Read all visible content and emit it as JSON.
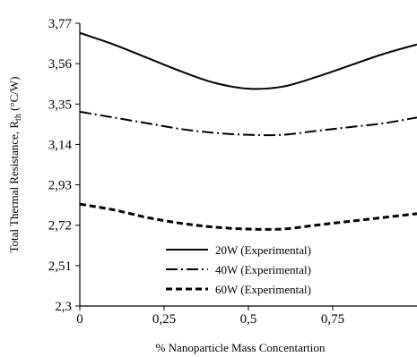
{
  "chart_data": {
    "type": "line",
    "xlabel": "% Nanoparticle Mass Concentartion",
    "ylabel": "Total Thermal Resistance, R",
    "ylabel_subscript": "th",
    "ylabel_unit": " (°C/W)",
    "xlim": [
      0,
      1
    ],
    "ylim": [
      2.3,
      3.77
    ],
    "x_ticks": [
      {
        "value": 0,
        "label": "0"
      },
      {
        "value": 0.25,
        "label": "0,25"
      },
      {
        "value": 0.5,
        "label": "0,5"
      },
      {
        "value": 0.75,
        "label": "0,75"
      }
    ],
    "y_ticks": [
      {
        "value": 2.3,
        "label": "2,3"
      },
      {
        "value": 2.51,
        "label": "2,51"
      },
      {
        "value": 2.72,
        "label": "2,72"
      },
      {
        "value": 2.93,
        "label": "2,93"
      },
      {
        "value": 3.14,
        "label": "3,14"
      },
      {
        "value": 3.35,
        "label": "3,35"
      },
      {
        "value": 3.56,
        "label": "3,56"
      },
      {
        "value": 3.77,
        "label": "3,77"
      }
    ],
    "grid": false,
    "legend_position": "bottom-center",
    "series": [
      {
        "name": "20W (Experimental)",
        "style": "solid",
        "color": "#000000",
        "x": [
          0,
          0.1,
          0.2,
          0.3,
          0.4,
          0.5,
          0.6,
          0.7,
          0.8,
          0.9,
          1.0
        ],
        "y": [
          3.72,
          3.66,
          3.59,
          3.52,
          3.46,
          3.43,
          3.44,
          3.49,
          3.55,
          3.61,
          3.66
        ]
      },
      {
        "name": "40W (Experimental)",
        "style": "dashdot",
        "color": "#000000",
        "x": [
          0,
          0.1,
          0.2,
          0.3,
          0.4,
          0.5,
          0.6,
          0.7,
          0.8,
          0.9,
          1.0
        ],
        "y": [
          3.31,
          3.28,
          3.25,
          3.22,
          3.2,
          3.19,
          3.19,
          3.21,
          3.23,
          3.25,
          3.28
        ]
      },
      {
        "name": "60W (Experimental)",
        "style": "dashed",
        "color": "#000000",
        "x": [
          0,
          0.1,
          0.2,
          0.3,
          0.4,
          0.5,
          0.6,
          0.7,
          0.8,
          0.9,
          1.0
        ],
        "y": [
          2.83,
          2.8,
          2.76,
          2.73,
          2.71,
          2.7,
          2.7,
          2.72,
          2.74,
          2.76,
          2.78
        ]
      }
    ]
  }
}
